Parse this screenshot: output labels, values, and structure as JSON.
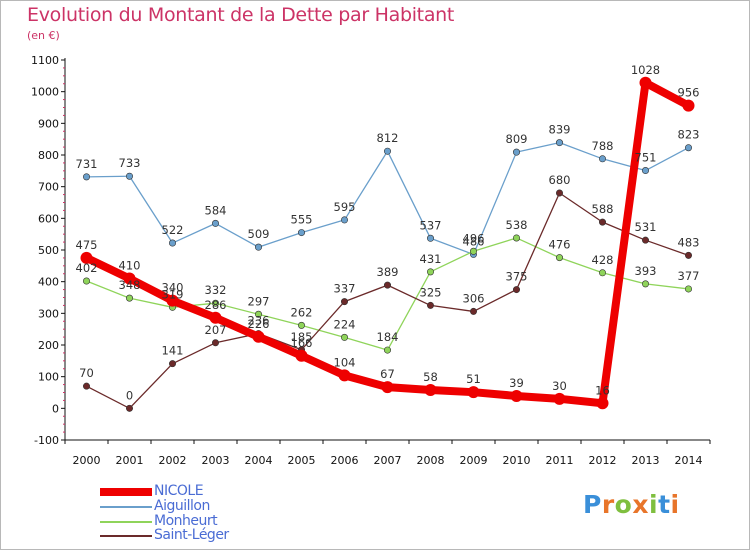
{
  "header": {
    "title": "Evolution du Montant de la Dette par Habitant",
    "subtitle": "(en €)"
  },
  "brand": {
    "letters": [
      "P",
      "r",
      "o",
      "x",
      "i",
      "t",
      "i"
    ],
    "colors": [
      "#3a8fd9",
      "#e8752a",
      "#7fbf3f",
      "#e8752a",
      "#7fbf3f",
      "#3a8fd9",
      "#e8752a"
    ]
  },
  "chart_data": {
    "type": "line",
    "title": "Evolution du Montant de la Dette par Habitant",
    "subtitle": "(en €)",
    "x": [
      "2000",
      "2001",
      "2002",
      "2003",
      "2004",
      "2005",
      "2006",
      "2007",
      "2008",
      "2009",
      "2010",
      "2011",
      "2012",
      "2013",
      "2014"
    ],
    "ylim": [
      -100,
      1100
    ],
    "yticks": [
      -100,
      0,
      100,
      200,
      300,
      400,
      500,
      600,
      700,
      800,
      900,
      1000,
      1100
    ],
    "grid": false,
    "legend_placement": "bottom-left",
    "series": [
      {
        "name": "NICOLE",
        "color": "#ee0000",
        "values": [
          475,
          410,
          340,
          286,
          226,
          166,
          104,
          67,
          58,
          51,
          39,
          30,
          16,
          1028,
          956
        ]
      },
      {
        "name": "Aiguillon",
        "color": "#6a9fcb",
        "values": [
          731,
          733,
          522,
          584,
          509,
          555,
          595,
          812,
          537,
          486,
          809,
          839,
          788,
          751,
          823
        ]
      },
      {
        "name": "Monheurt",
        "color": "#8fd45a",
        "values": [
          402,
          348,
          319,
          332,
          297,
          262,
          224,
          184,
          431,
          496,
          538,
          476,
          428,
          393,
          377
        ]
      },
      {
        "name": "Saint-Léger",
        "color": "#6b2a2a",
        "values": [
          70,
          0,
          141,
          207,
          236,
          185,
          337,
          389,
          325,
          306,
          375,
          680,
          588,
          531,
          483
        ]
      }
    ]
  }
}
